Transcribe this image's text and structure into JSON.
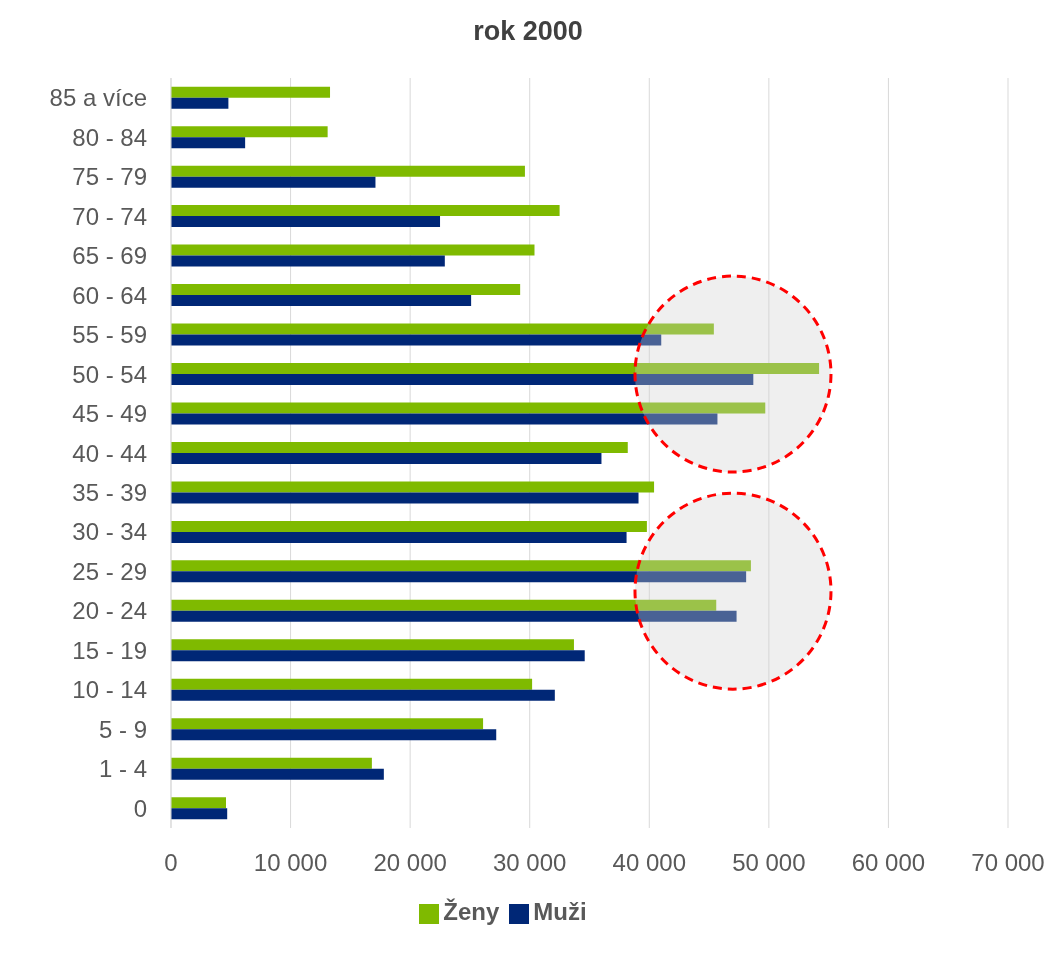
{
  "chart_data": {
    "type": "bar",
    "orientation": "horizontal",
    "title": "rok 2000",
    "categories": [
      "85 a více",
      "80 - 84",
      "75 - 79",
      "70 - 74",
      "65 - 69",
      "60 - 64",
      "55 - 59",
      "50 - 54",
      "45 - 49",
      "40 - 44",
      "35 - 39",
      "30 - 34",
      "25 - 29",
      "20 - 24",
      "15 - 19",
      "10 - 14",
      "5 - 9",
      "1 - 4",
      "0"
    ],
    "series": [
      {
        "name": "Ženy",
        "color": "#7fba00",
        "values": [
          13300,
          13100,
          29600,
          32500,
          30400,
          29200,
          45400,
          54200,
          49700,
          38200,
          40400,
          39800,
          48500,
          45600,
          33700,
          30200,
          26100,
          16800,
          4600
        ]
      },
      {
        "name": "Muži",
        "color": "#002776",
        "values": [
          4800,
          6200,
          17100,
          22500,
          22900,
          25100,
          41000,
          48700,
          45700,
          36000,
          39100,
          38100,
          48100,
          47300,
          34600,
          32100,
          27200,
          17800,
          4700
        ]
      }
    ],
    "xlim": [
      0,
      70000
    ],
    "xticks": [
      0,
      {
        "value": 10000,
        "label": "10 000"
      },
      {
        "value": 20000,
        "label": "20 000"
      },
      {
        "value": 30000,
        "label": "30 000"
      },
      {
        "value": 40000,
        "label": "40 000"
      },
      {
        "value": 50000,
        "label": "50 000"
      },
      {
        "value": 60000,
        "label": "60 000"
      },
      {
        "value": 70000,
        "label": "70 000"
      }
    ],
    "grid": "x",
    "legend": "bottom"
  }
}
